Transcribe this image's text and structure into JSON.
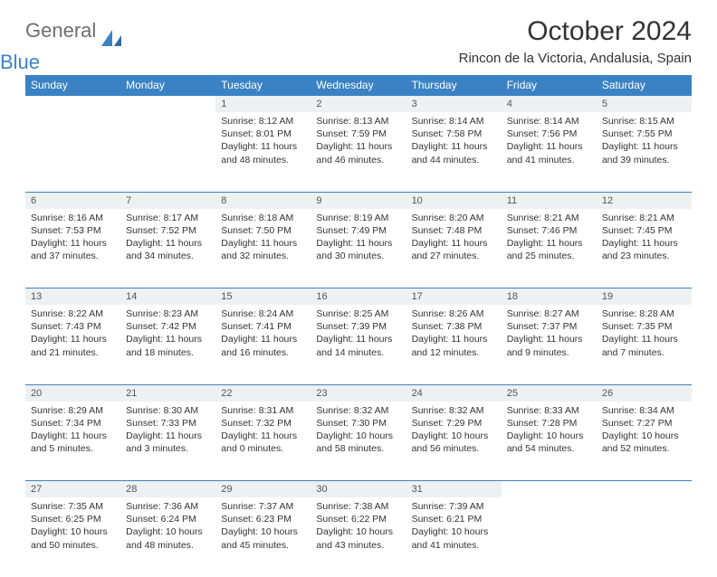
{
  "logo": {
    "word1": "General",
    "word2": "Blue",
    "color_general": "#6d6d6d",
    "color_blue": "#3b82c4"
  },
  "title": "October 2024",
  "location": "Rincon de la Victoria, Andalusia, Spain",
  "colors": {
    "header_bg": "#3b82c4",
    "header_text": "#ffffff",
    "daynum_bg": "#eef0f1",
    "row_border": "#3b82c4",
    "body_text": "#333333"
  },
  "weekdays": [
    "Sunday",
    "Monday",
    "Tuesday",
    "Wednesday",
    "Thursday",
    "Friday",
    "Saturday"
  ],
  "weeks": [
    [
      null,
      null,
      {
        "n": "1",
        "sr": "Sunrise: 8:12 AM",
        "ss": "Sunset: 8:01 PM",
        "dl": "Daylight: 11 hours and 48 minutes."
      },
      {
        "n": "2",
        "sr": "Sunrise: 8:13 AM",
        "ss": "Sunset: 7:59 PM",
        "dl": "Daylight: 11 hours and 46 minutes."
      },
      {
        "n": "3",
        "sr": "Sunrise: 8:14 AM",
        "ss": "Sunset: 7:58 PM",
        "dl": "Daylight: 11 hours and 44 minutes."
      },
      {
        "n": "4",
        "sr": "Sunrise: 8:14 AM",
        "ss": "Sunset: 7:56 PM",
        "dl": "Daylight: 11 hours and 41 minutes."
      },
      {
        "n": "5",
        "sr": "Sunrise: 8:15 AM",
        "ss": "Sunset: 7:55 PM",
        "dl": "Daylight: 11 hours and 39 minutes."
      }
    ],
    [
      {
        "n": "6",
        "sr": "Sunrise: 8:16 AM",
        "ss": "Sunset: 7:53 PM",
        "dl": "Daylight: 11 hours and 37 minutes."
      },
      {
        "n": "7",
        "sr": "Sunrise: 8:17 AM",
        "ss": "Sunset: 7:52 PM",
        "dl": "Daylight: 11 hours and 34 minutes."
      },
      {
        "n": "8",
        "sr": "Sunrise: 8:18 AM",
        "ss": "Sunset: 7:50 PM",
        "dl": "Daylight: 11 hours and 32 minutes."
      },
      {
        "n": "9",
        "sr": "Sunrise: 8:19 AM",
        "ss": "Sunset: 7:49 PM",
        "dl": "Daylight: 11 hours and 30 minutes."
      },
      {
        "n": "10",
        "sr": "Sunrise: 8:20 AM",
        "ss": "Sunset: 7:48 PM",
        "dl": "Daylight: 11 hours and 27 minutes."
      },
      {
        "n": "11",
        "sr": "Sunrise: 8:21 AM",
        "ss": "Sunset: 7:46 PM",
        "dl": "Daylight: 11 hours and 25 minutes."
      },
      {
        "n": "12",
        "sr": "Sunrise: 8:21 AM",
        "ss": "Sunset: 7:45 PM",
        "dl": "Daylight: 11 hours and 23 minutes."
      }
    ],
    [
      {
        "n": "13",
        "sr": "Sunrise: 8:22 AM",
        "ss": "Sunset: 7:43 PM",
        "dl": "Daylight: 11 hours and 21 minutes."
      },
      {
        "n": "14",
        "sr": "Sunrise: 8:23 AM",
        "ss": "Sunset: 7:42 PM",
        "dl": "Daylight: 11 hours and 18 minutes."
      },
      {
        "n": "15",
        "sr": "Sunrise: 8:24 AM",
        "ss": "Sunset: 7:41 PM",
        "dl": "Daylight: 11 hours and 16 minutes."
      },
      {
        "n": "16",
        "sr": "Sunrise: 8:25 AM",
        "ss": "Sunset: 7:39 PM",
        "dl": "Daylight: 11 hours and 14 minutes."
      },
      {
        "n": "17",
        "sr": "Sunrise: 8:26 AM",
        "ss": "Sunset: 7:38 PM",
        "dl": "Daylight: 11 hours and 12 minutes."
      },
      {
        "n": "18",
        "sr": "Sunrise: 8:27 AM",
        "ss": "Sunset: 7:37 PM",
        "dl": "Daylight: 11 hours and 9 minutes."
      },
      {
        "n": "19",
        "sr": "Sunrise: 8:28 AM",
        "ss": "Sunset: 7:35 PM",
        "dl": "Daylight: 11 hours and 7 minutes."
      }
    ],
    [
      {
        "n": "20",
        "sr": "Sunrise: 8:29 AM",
        "ss": "Sunset: 7:34 PM",
        "dl": "Daylight: 11 hours and 5 minutes."
      },
      {
        "n": "21",
        "sr": "Sunrise: 8:30 AM",
        "ss": "Sunset: 7:33 PM",
        "dl": "Daylight: 11 hours and 3 minutes."
      },
      {
        "n": "22",
        "sr": "Sunrise: 8:31 AM",
        "ss": "Sunset: 7:32 PM",
        "dl": "Daylight: 11 hours and 0 minutes."
      },
      {
        "n": "23",
        "sr": "Sunrise: 8:32 AM",
        "ss": "Sunset: 7:30 PM",
        "dl": "Daylight: 10 hours and 58 minutes."
      },
      {
        "n": "24",
        "sr": "Sunrise: 8:32 AM",
        "ss": "Sunset: 7:29 PM",
        "dl": "Daylight: 10 hours and 56 minutes."
      },
      {
        "n": "25",
        "sr": "Sunrise: 8:33 AM",
        "ss": "Sunset: 7:28 PM",
        "dl": "Daylight: 10 hours and 54 minutes."
      },
      {
        "n": "26",
        "sr": "Sunrise: 8:34 AM",
        "ss": "Sunset: 7:27 PM",
        "dl": "Daylight: 10 hours and 52 minutes."
      }
    ],
    [
      {
        "n": "27",
        "sr": "Sunrise: 7:35 AM",
        "ss": "Sunset: 6:25 PM",
        "dl": "Daylight: 10 hours and 50 minutes."
      },
      {
        "n": "28",
        "sr": "Sunrise: 7:36 AM",
        "ss": "Sunset: 6:24 PM",
        "dl": "Daylight: 10 hours and 48 minutes."
      },
      {
        "n": "29",
        "sr": "Sunrise: 7:37 AM",
        "ss": "Sunset: 6:23 PM",
        "dl": "Daylight: 10 hours and 45 minutes."
      },
      {
        "n": "30",
        "sr": "Sunrise: 7:38 AM",
        "ss": "Sunset: 6:22 PM",
        "dl": "Daylight: 10 hours and 43 minutes."
      },
      {
        "n": "31",
        "sr": "Sunrise: 7:39 AM",
        "ss": "Sunset: 6:21 PM",
        "dl": "Daylight: 10 hours and 41 minutes."
      },
      null,
      null
    ]
  ]
}
